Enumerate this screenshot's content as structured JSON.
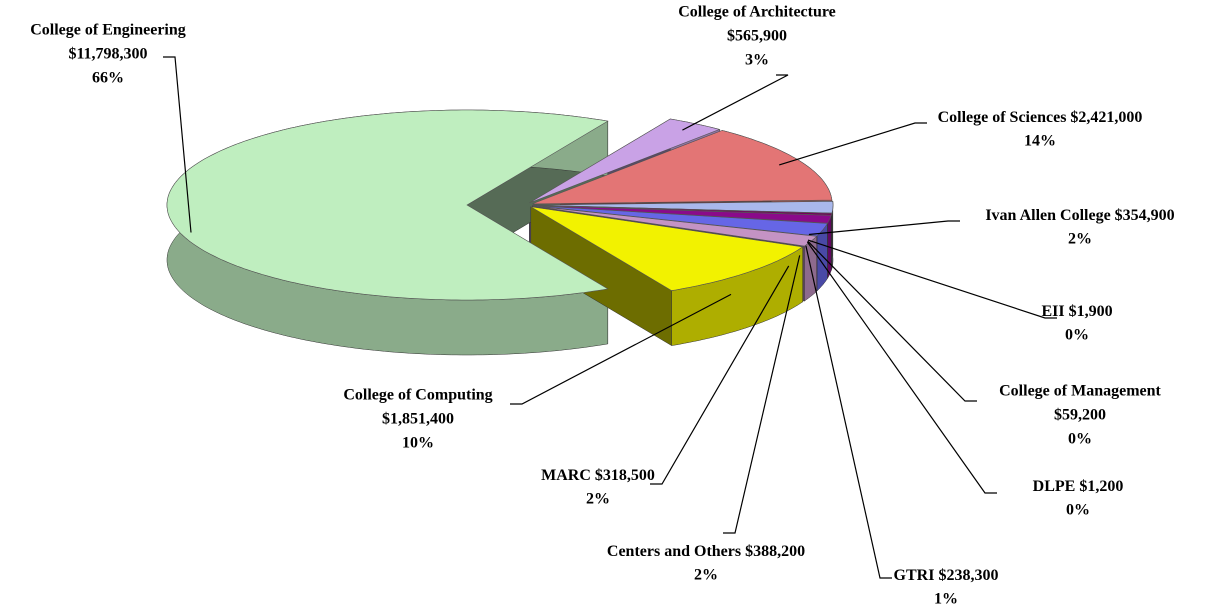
{
  "chart_data": {
    "type": "pie3d",
    "categories": [
      "College of Engineering",
      "College of Architecture",
      "College of Sciences",
      "Ivan Allen College",
      "EII",
      "College of Management",
      "DLPE",
      "GTRI",
      "Centers and Others",
      "MARC",
      "College of Computing"
    ],
    "values": [
      11798300,
      565900,
      2421000,
      354900,
      1900,
      59200,
      1200,
      238300,
      388200,
      318500,
      1851400
    ],
    "value_labels": [
      "$11,798,300",
      "$565,900",
      "$2,421,000",
      "$354,900",
      "$1,900",
      "$59,200",
      "$1,200",
      "$238,300",
      "$388,200",
      "$318,500",
      "$1,851,400"
    ],
    "percents": [
      66,
      3,
      14,
      2,
      0,
      0,
      0,
      1,
      2,
      2,
      10
    ],
    "percent_labels": [
      "66%",
      "3%",
      "14%",
      "2%",
      "0%",
      "0%",
      "0%",
      "1%",
      "2%",
      "2%",
      "10%"
    ],
    "colors": [
      "#bfeebf",
      "#c9a2e6",
      "#e37575",
      "#a9b8ec",
      "#f4f4f4",
      "#74005c",
      "#4a0048",
      "#8a0a8a",
      "#6666e6",
      "#c493c4",
      "#f2f200"
    ]
  }
}
